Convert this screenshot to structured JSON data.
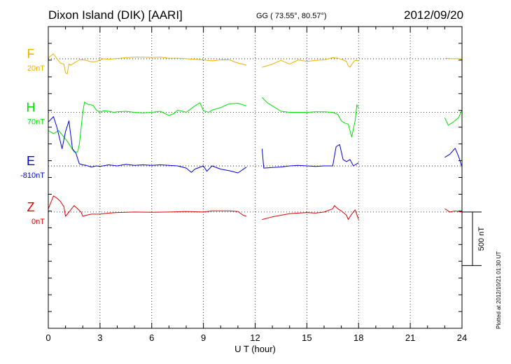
{
  "header": {
    "station_title": "Dixon Island (DIK)  [AARI]",
    "coordinates": "GG ( 73.55°,  80.57°)",
    "date": "2012/09/20"
  },
  "plotted_note": "Plotted at 2012/10/21 01:30 UT",
  "colors": {
    "F": "#f0b000",
    "H": "#00e000",
    "E": "#0000e0",
    "Z": "#e00000"
  },
  "chart_data": {
    "type": "line",
    "title": "Dixon Island (DIK)  [AARI]",
    "xlabel": "U T (hour)",
    "xlim": [
      0,
      24
    ],
    "xticks": [
      0,
      3,
      6,
      9,
      12,
      15,
      18,
      21,
      24
    ],
    "xtick_labels": [
      "0",
      "3",
      "6",
      "9",
      "12",
      "15",
      "18",
      "21",
      "24"
    ],
    "ylim_nT": [
      -1515,
      1300
    ],
    "scale_bar": {
      "value_nT": 500,
      "label": "500 nT"
    },
    "grid": true,
    "series": [
      {
        "name": "F",
        "baseline_label": "20nT",
        "baseline_nT": 1000,
        "segments": [
          [
            [
              0,
              1010
            ],
            [
              0.3,
              1045
            ],
            [
              0.5,
              1000
            ],
            [
              0.7,
              960
            ],
            [
              0.9,
              950
            ],
            [
              1.0,
              870
            ],
            [
              1.1,
              860
            ],
            [
              1.2,
              950
            ],
            [
              1.3,
              940
            ],
            [
              1.5,
              960
            ],
            [
              1.7,
              980
            ],
            [
              1.8,
              990
            ],
            [
              2.0,
              990
            ],
            [
              2.2,
              985
            ],
            [
              2.4,
              975
            ],
            [
              2.6,
              970
            ],
            [
              2.8,
              975
            ],
            [
              3.0,
              990
            ],
            [
              3.2,
              1000
            ],
            [
              3.5,
              995
            ],
            [
              3.8,
              1000
            ],
            [
              4.2,
              1005
            ],
            [
              4.5,
              1010
            ],
            [
              5.0,
              1015
            ],
            [
              5.5,
              1015
            ],
            [
              6.0,
              1012
            ],
            [
              6.5,
              1015
            ],
            [
              7.0,
              1005
            ],
            [
              7.5,
              1005
            ],
            [
              8.0,
              1000
            ],
            [
              8.5,
              995
            ],
            [
              9.0,
              990
            ],
            [
              9.5,
              980
            ],
            [
              10.0,
              990
            ],
            [
              10.5,
              990
            ],
            [
              11.0,
              960
            ],
            [
              11.5,
              940
            ]
          ],
          [
            [
              12.4,
              920
            ],
            [
              13.0,
              950
            ],
            [
              13.5,
              985
            ],
            [
              14.0,
              950
            ],
            [
              14.5,
              990
            ],
            [
              15.0,
              975
            ],
            [
              15.5,
              985
            ],
            [
              16.0,
              990
            ],
            [
              16.5,
              1010
            ],
            [
              16.8,
              1005
            ],
            [
              17.1,
              990
            ],
            [
              17.3,
              975
            ],
            [
              17.4,
              935
            ],
            [
              17.5,
              920
            ],
            [
              17.6,
              945
            ],
            [
              17.7,
              970
            ],
            [
              17.8,
              985
            ],
            [
              18.0,
              980
            ]
          ],
          [
            [
              23.0,
              1005
            ],
            [
              23.4,
              1000
            ],
            [
              23.8,
              1000
            ],
            [
              24.0,
              995
            ]
          ]
        ]
      },
      {
        "name": "H",
        "baseline_label": "70nT",
        "baseline_nT": 500,
        "segments": [
          [
            [
              0,
              330
            ],
            [
              0.3,
              300
            ],
            [
              0.6,
              330
            ],
            [
              0.9,
              270
            ],
            [
              1.1,
              230
            ],
            [
              1.3,
              180
            ],
            [
              1.5,
              130
            ],
            [
              1.7,
              130
            ],
            [
              1.8,
              200
            ],
            [
              1.9,
              350
            ],
            [
              2.0,
              500
            ],
            [
              2.1,
              595
            ],
            [
              2.3,
              575
            ],
            [
              2.6,
              565
            ],
            [
              2.8,
              520
            ],
            [
              3.0,
              500
            ],
            [
              3.2,
              515
            ],
            [
              3.5,
              510
            ],
            [
              3.8,
              500
            ],
            [
              4.0,
              505
            ],
            [
              4.5,
              510
            ],
            [
              5.0,
              500
            ],
            [
              5.5,
              495
            ],
            [
              6.0,
              500
            ],
            [
              6.5,
              510
            ],
            [
              7.0,
              470
            ],
            [
              7.3,
              490
            ],
            [
              7.5,
              520
            ],
            [
              7.8,
              510
            ],
            [
              8.0,
              500
            ],
            [
              8.5,
              560
            ],
            [
              8.8,
              590
            ],
            [
              9.0,
              515
            ],
            [
              9.3,
              500
            ],
            [
              9.5,
              520
            ],
            [
              10.0,
              545
            ],
            [
              10.5,
              580
            ],
            [
              11.0,
              585
            ],
            [
              11.5,
              560
            ]
          ],
          [
            [
              12.4,
              640
            ],
            [
              12.7,
              590
            ],
            [
              13.0,
              560
            ],
            [
              13.5,
              510
            ],
            [
              14.0,
              500
            ],
            [
              14.5,
              500
            ],
            [
              15.0,
              500
            ],
            [
              15.5,
              505
            ],
            [
              16.0,
              505
            ],
            [
              16.5,
              500
            ],
            [
              16.8,
              480
            ],
            [
              17.0,
              420
            ],
            [
              17.2,
              400
            ],
            [
              17.4,
              390
            ],
            [
              17.6,
              270
            ],
            [
              17.8,
              420
            ],
            [
              17.9,
              570
            ],
            [
              18.0,
              540
            ]
          ],
          [
            [
              23.0,
              450
            ],
            [
              23.2,
              380
            ],
            [
              23.5,
              410
            ],
            [
              23.8,
              450
            ],
            [
              24.0,
              520
            ]
          ]
        ]
      },
      {
        "name": "E",
        "baseline_label": "-810nT",
        "baseline_nT": 0,
        "segments": [
          [
            [
              0,
              410
            ],
            [
              0.3,
              460
            ],
            [
              0.5,
              360
            ],
            [
              0.8,
              160
            ],
            [
              1.0,
              320
            ],
            [
              1.2,
              420
            ],
            [
              1.4,
              160
            ],
            [
              1.6,
              120
            ],
            [
              1.8,
              20
            ],
            [
              2.0,
              10
            ],
            [
              2.2,
              5
            ],
            [
              2.5,
              -10
            ],
            [
              2.8,
              0
            ],
            [
              3.0,
              -5
            ],
            [
              3.5,
              10
            ],
            [
              4.0,
              0
            ],
            [
              4.5,
              15
            ],
            [
              5.0,
              5
            ],
            [
              5.5,
              10
            ],
            [
              6.0,
              5
            ],
            [
              6.5,
              10
            ],
            [
              7.0,
              5
            ],
            [
              7.5,
              0
            ],
            [
              8.0,
              -20
            ],
            [
              8.3,
              -60
            ],
            [
              8.5,
              -30
            ],
            [
              9.0,
              0
            ],
            [
              9.2,
              -50
            ],
            [
              9.5,
              0
            ],
            [
              10.0,
              -30
            ],
            [
              10.5,
              -45
            ],
            [
              11.0,
              -65
            ],
            [
              11.5,
              -10
            ]
          ],
          [
            [
              12.4,
              160
            ],
            [
              12.5,
              -20
            ],
            [
              13.0,
              -15
            ],
            [
              13.5,
              -10
            ],
            [
              14.0,
              0
            ],
            [
              14.5,
              5
            ],
            [
              15.0,
              0
            ],
            [
              15.5,
              -5
            ],
            [
              16.0,
              0
            ],
            [
              16.5,
              0
            ],
            [
              16.7,
              180
            ],
            [
              16.9,
              200
            ],
            [
              17.1,
              60
            ],
            [
              17.3,
              40
            ],
            [
              17.5,
              60
            ],
            [
              17.7,
              0
            ],
            [
              18.0,
              30
            ]
          ],
          [
            [
              23.0,
              80
            ],
            [
              23.3,
              110
            ],
            [
              23.6,
              165
            ],
            [
              23.8,
              90
            ],
            [
              24.0,
              -10
            ]
          ]
        ]
      },
      {
        "name": "Z",
        "baseline_label": "0nT",
        "baseline_nT": -430,
        "segments": [
          [
            [
              0,
              -400
            ],
            [
              0.3,
              -280
            ],
            [
              0.5,
              -300
            ],
            [
              0.7,
              -330
            ],
            [
              0.9,
              -380
            ],
            [
              1.0,
              -470
            ],
            [
              1.2,
              -430
            ],
            [
              1.5,
              -370
            ],
            [
              1.7,
              -400
            ],
            [
              1.9,
              -430
            ],
            [
              2.0,
              -470
            ],
            [
              2.2,
              -460
            ],
            [
              2.5,
              -450
            ],
            [
              3.0,
              -450
            ],
            [
              3.5,
              -440
            ],
            [
              4.0,
              -435
            ],
            [
              5.0,
              -430
            ],
            [
              6.0,
              -432
            ],
            [
              7.0,
              -430
            ],
            [
              8.0,
              -425
            ],
            [
              9.0,
              -430
            ],
            [
              9.5,
              -420
            ],
            [
              10.0,
              -420
            ],
            [
              10.5,
              -420
            ],
            [
              11.0,
              -425
            ],
            [
              11.3,
              -460
            ],
            [
              11.5,
              -470
            ]
          ],
          [
            [
              12.4,
              -500
            ],
            [
              13.0,
              -475
            ],
            [
              13.5,
              -460
            ],
            [
              14.0,
              -445
            ],
            [
              14.5,
              -440
            ],
            [
              15.0,
              -435
            ],
            [
              15.5,
              -440
            ],
            [
              16.0,
              -430
            ],
            [
              16.5,
              -400
            ],
            [
              16.6,
              -370
            ],
            [
              16.8,
              -400
            ],
            [
              17.0,
              -420
            ],
            [
              17.3,
              -460
            ],
            [
              17.4,
              -500
            ],
            [
              17.6,
              -450
            ],
            [
              17.8,
              -410
            ],
            [
              18.0,
              -500
            ]
          ],
          [
            [
              23.0,
              -400
            ],
            [
              23.3,
              -430
            ],
            [
              23.6,
              -420
            ],
            [
              24.0,
              -430
            ]
          ]
        ]
      }
    ]
  }
}
